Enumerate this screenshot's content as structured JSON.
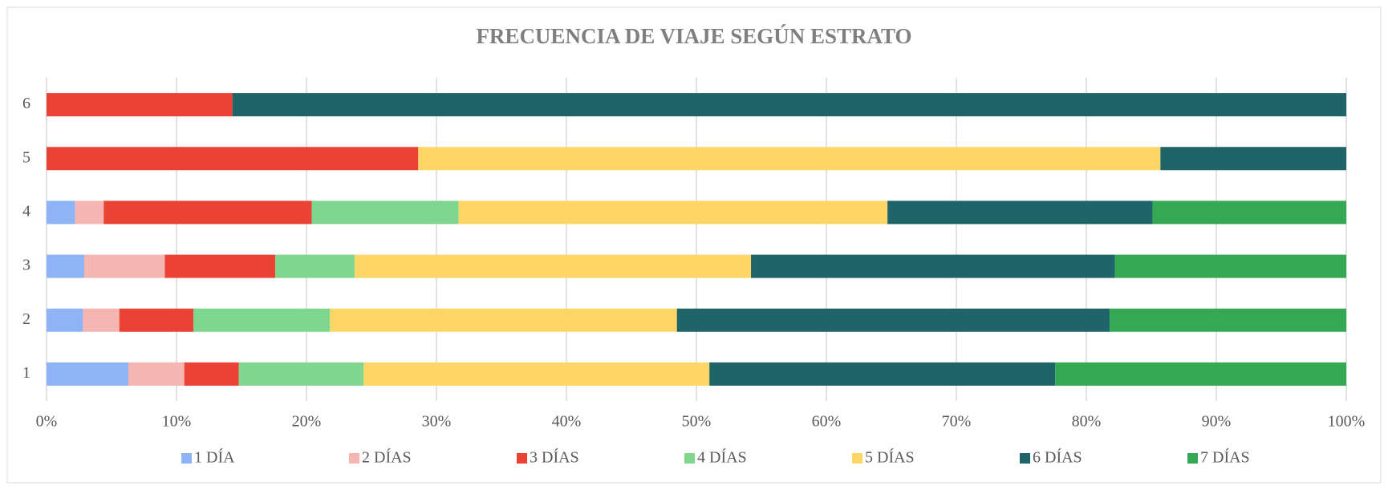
{
  "chart_data": {
    "type": "stacked_barh",
    "title": "FRECUENCIA DE VIAJE SEGÚN ESTRATO",
    "categories": [
      "1",
      "2",
      "3",
      "4",
      "5",
      "6"
    ],
    "series": [
      {
        "name": "1 DÍA",
        "color": "#8fb4f5",
        "values": [
          6.3,
          2.8,
          2.9,
          2.2,
          0,
          0
        ]
      },
      {
        "name": "2 DÍAS",
        "color": "#f5b5b0",
        "values": [
          4.3,
          2.8,
          6.2,
          2.2,
          0,
          0
        ]
      },
      {
        "name": "3 DÍAS",
        "color": "#ea4335",
        "values": [
          4.2,
          5.7,
          8.5,
          16.0,
          28.6,
          14.3
        ]
      },
      {
        "name": "4 DÍAS",
        "color": "#7fd68f",
        "values": [
          9.6,
          10.5,
          6.1,
          11.3,
          0,
          0
        ]
      },
      {
        "name": "5 DÍAS",
        "color": "#fdd666",
        "values": [
          26.6,
          26.7,
          30.5,
          33.0,
          57.1,
          0
        ]
      },
      {
        "name": "6 DÍAS",
        "color": "#1f6468",
        "values": [
          26.6,
          33.3,
          28.0,
          20.4,
          14.3,
          85.7
        ]
      },
      {
        "name": "7 DÍAS",
        "color": "#34a853",
        "values": [
          22.4,
          18.2,
          17.8,
          14.9,
          0,
          0
        ]
      }
    ],
    "xlim": [
      0,
      100
    ],
    "xticks": [
      {
        "value": 0,
        "label": "0%"
      },
      {
        "value": 10,
        "label": "10%"
      },
      {
        "value": 20,
        "label": "20%"
      },
      {
        "value": 30,
        "label": "30%"
      },
      {
        "value": 40,
        "label": "40%"
      },
      {
        "value": 50,
        "label": "50%"
      },
      {
        "value": 60,
        "label": "60%"
      },
      {
        "value": 70,
        "label": "70%"
      },
      {
        "value": 80,
        "label": "80%"
      },
      {
        "value": 90,
        "label": "90%"
      },
      {
        "value": 100,
        "label": "100%"
      }
    ],
    "grid": true,
    "legend": "bottom"
  }
}
